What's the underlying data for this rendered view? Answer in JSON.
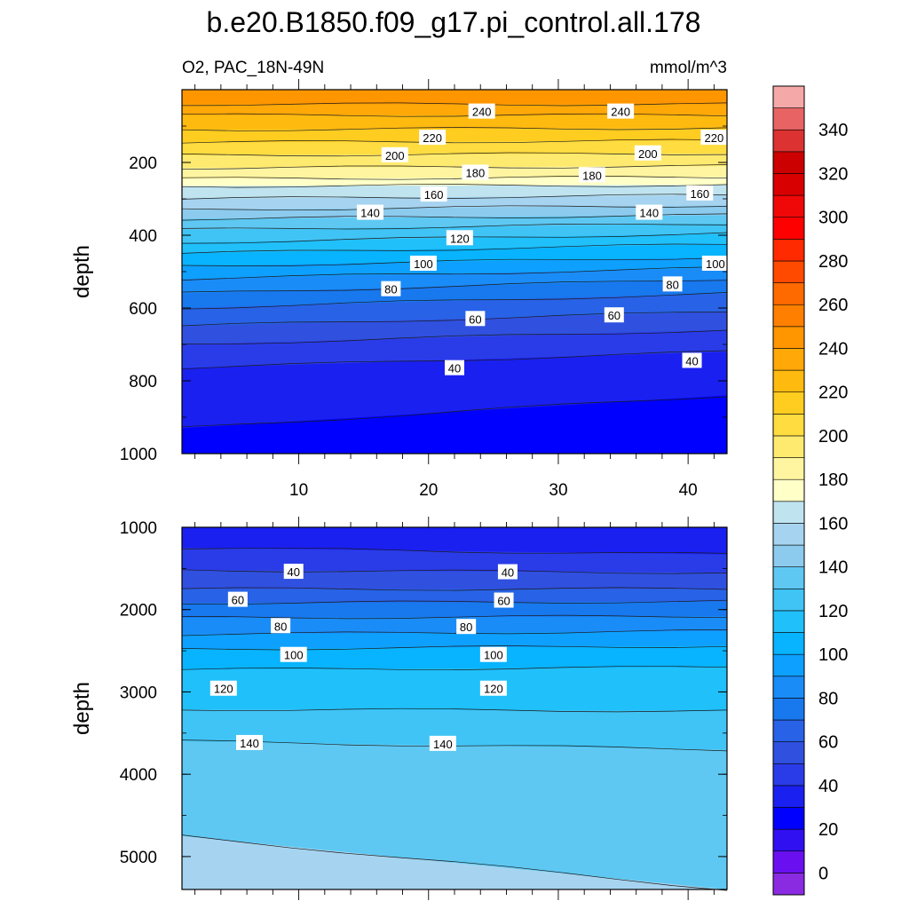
{
  "title": "b.e20.B1850.f09_g17.pi_control.all.178",
  "subtitle_left": "O2, PAC_18N-49N",
  "subtitle_right": "mmol/m^3",
  "chart_data": [
    {
      "type": "contour",
      "panel": "upper",
      "variable": "O2",
      "ylabel": "depth",
      "xlabel": "",
      "xlim": [
        1,
        43
      ],
      "ylim": [
        1000,
        0
      ],
      "xticks": [
        10,
        20,
        30,
        40
      ],
      "xtick_labels": [
        "10",
        "20",
        "30",
        "40"
      ],
      "yticks": [
        200,
        400,
        600,
        800,
        1000
      ],
      "ytick_labels": [
        "200",
        "400",
        "600",
        "800",
        "1000"
      ],
      "contour_lines": [
        {
          "level": 240,
          "y_left": 40,
          "y_right": 40
        },
        {
          "level": 230,
          "y_left": 70,
          "y_right": 70
        },
        {
          "level": 220,
          "y_left": 110,
          "y_right": 105
        },
        {
          "level": 210,
          "y_left": 145,
          "y_right": 140
        },
        {
          "level": 200,
          "y_left": 180,
          "y_right": 175
        },
        {
          "level": 190,
          "y_left": 215,
          "y_right": 210
        },
        {
          "level": 180,
          "y_left": 245,
          "y_right": 240
        },
        {
          "level": 170,
          "y_left": 265,
          "y_right": 262
        },
        {
          "level": 160,
          "y_left": 300,
          "y_right": 290
        },
        {
          "level": 150,
          "y_left": 330,
          "y_right": 318
        },
        {
          "level": 140,
          "y_left": 355,
          "y_right": 345
        },
        {
          "level": 130,
          "y_left": 385,
          "y_right": 368
        },
        {
          "level": 120,
          "y_left": 420,
          "y_right": 395
        },
        {
          "level": 110,
          "y_left": 450,
          "y_right": 425
        },
        {
          "level": 100,
          "y_left": 485,
          "y_right": 460
        },
        {
          "level": 90,
          "y_left": 520,
          "y_right": 490
        },
        {
          "level": 80,
          "y_left": 560,
          "y_right": 520
        },
        {
          "level": 70,
          "y_left": 600,
          "y_right": 560
        },
        {
          "level": 60,
          "y_left": 650,
          "y_right": 610
        },
        {
          "level": 50,
          "y_left": 700,
          "y_right": 660
        },
        {
          "level": 40,
          "y_left": 765,
          "y_right": 720
        },
        {
          "level": 30,
          "y_left": 930,
          "y_right": 840
        }
      ],
      "contour_labels": [
        {
          "text": "240",
          "x": 24.1,
          "y": 60
        },
        {
          "text": "240",
          "x": 34.8,
          "y": 60
        },
        {
          "text": "220",
          "x": 20.3,
          "y": 132
        },
        {
          "text": "220",
          "x": 42.0,
          "y": 132
        },
        {
          "text": "200",
          "x": 17.4,
          "y": 180
        },
        {
          "text": "200",
          "x": 36.9,
          "y": 175
        },
        {
          "text": "180",
          "x": 23.6,
          "y": 228
        },
        {
          "text": "180",
          "x": 32.6,
          "y": 235
        },
        {
          "text": "160",
          "x": 20.4,
          "y": 288
        },
        {
          "text": "160",
          "x": 40.9,
          "y": 285
        },
        {
          "text": "140",
          "x": 15.5,
          "y": 338
        },
        {
          "text": "140",
          "x": 37.0,
          "y": 338
        },
        {
          "text": "120",
          "x": 22.4,
          "y": 408
        },
        {
          "text": "100",
          "x": 19.6,
          "y": 478
        },
        {
          "text": "100",
          "x": 42.1,
          "y": 478
        },
        {
          "text": "80",
          "x": 17.1,
          "y": 548
        },
        {
          "text": "80",
          "x": 38.8,
          "y": 535
        },
        {
          "text": "60",
          "x": 23.6,
          "y": 630
        },
        {
          "text": "60",
          "x": 34.3,
          "y": 620
        },
        {
          "text": "40",
          "x": 22.0,
          "y": 765
        },
        {
          "text": "40",
          "x": 40.3,
          "y": 745
        }
      ]
    },
    {
      "type": "contour",
      "panel": "lower",
      "variable": "O2",
      "ylabel": "depth",
      "xlabel": "",
      "xlim": [
        1,
        43
      ],
      "ylim": [
        5400,
        1000
      ],
      "yticks": [
        1000,
        2000,
        3000,
        4000,
        5000
      ],
      "ytick_labels": [
        "1000",
        "2000",
        "3000",
        "4000",
        "5000"
      ],
      "contour_lines": [
        {
          "level": 40,
          "y_left": 1250,
          "y_right": 1330
        },
        {
          "level": 50,
          "y_left": 1520,
          "y_right": 1550
        },
        {
          "level": 60,
          "y_left": 1750,
          "y_right": 1750
        },
        {
          "level": 70,
          "y_left": 1920,
          "y_right": 1900
        },
        {
          "level": 80,
          "y_left": 2100,
          "y_right": 2080
        },
        {
          "level": 90,
          "y_left": 2300,
          "y_right": 2260
        },
        {
          "level": 100,
          "y_left": 2480,
          "y_right": 2440
        },
        {
          "level": 110,
          "y_left": 2730,
          "y_right": 2700
        },
        {
          "level": 120,
          "y_left": 3210,
          "y_right": 3230
        },
        {
          "level": 130,
          "y_left": 3600,
          "y_right": 3700
        },
        {
          "level": 150,
          "y_left": 4750,
          "y_right": 5400
        }
      ],
      "contour_labels": [
        {
          "text": "40",
          "x": 9.6,
          "y": 1540
        },
        {
          "text": "40",
          "x": 26.1,
          "y": 1545
        },
        {
          "text": "60",
          "x": 5.3,
          "y": 1880
        },
        {
          "text": "60",
          "x": 25.8,
          "y": 1890
        },
        {
          "text": "80",
          "x": 8.6,
          "y": 2200
        },
        {
          "text": "80",
          "x": 22.9,
          "y": 2210
        },
        {
          "text": "100",
          "x": 9.6,
          "y": 2550
        },
        {
          "text": "100",
          "x": 25.0,
          "y": 2550
        },
        {
          "text": "120",
          "x": 4.2,
          "y": 2960
        },
        {
          "text": "120",
          "x": 25.0,
          "y": 2960
        },
        {
          "text": "140",
          "x": 6.2,
          "y": 3620
        },
        {
          "text": "140",
          "x": 21.1,
          "y": 3630
        }
      ]
    }
  ],
  "colorbar": {
    "levels": [
      0,
      10,
      20,
      30,
      40,
      50,
      60,
      70,
      80,
      90,
      100,
      110,
      120,
      130,
      140,
      150,
      160,
      170,
      180,
      190,
      200,
      210,
      220,
      230,
      240,
      250,
      260,
      270,
      280,
      290,
      300,
      310,
      320,
      330,
      340,
      350
    ],
    "colors": [
      "#8a2be2",
      "#6a10f0",
      "#3010f0",
      "#0000ff",
      "#1a20f0",
      "#2a3ce8",
      "#3050e0",
      "#2862e6",
      "#1878ee",
      "#1a8cf8",
      "#0ea0ff",
      "#08b4ff",
      "#20c0fb",
      "#40c4f5",
      "#5ec8f2",
      "#8ccbee",
      "#a6d4f0",
      "#bfe4f0",
      "#ffffc8",
      "#fff5a0",
      "#ffea70",
      "#ffdc40",
      "#ffcc20",
      "#ffba10",
      "#ffa808",
      "#ff9600",
      "#ff8000",
      "#ff6a00",
      "#ff4a00",
      "#ff2a00",
      "#ff0000",
      "#f00808",
      "#d80000",
      "#cc0000",
      "#dc3232",
      "#e86464",
      "#f5a8a8"
    ],
    "labels": [
      "0",
      "20",
      "40",
      "60",
      "80",
      "100",
      "120",
      "140",
      "160",
      "180",
      "200",
      "220",
      "240",
      "260",
      "280",
      "300",
      "320",
      "340"
    ]
  }
}
